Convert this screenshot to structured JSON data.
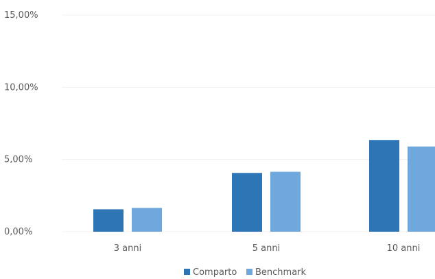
{
  "chart_data": {
    "type": "bar",
    "categories": [
      "3 anni",
      "5 anni",
      "10 anni"
    ],
    "series": [
      {
        "name": "Comparto",
        "values": [
          1.55,
          4.07,
          6.35
        ],
        "color": "#2e75b6"
      },
      {
        "name": "Benchmark",
        "values": [
          1.65,
          4.15,
          5.9
        ],
        "color": "#6fa8dc"
      }
    ],
    "ylim": [
      0,
      15
    ],
    "yticks": [
      0,
      5,
      10,
      15
    ],
    "ytick_labels": [
      "0,00%",
      "5,00%",
      "10,00%",
      "15,00%"
    ],
    "grid": true,
    "legend_position": "bottom",
    "grid_color": "#f0f0f0",
    "text_color": "#595959"
  }
}
